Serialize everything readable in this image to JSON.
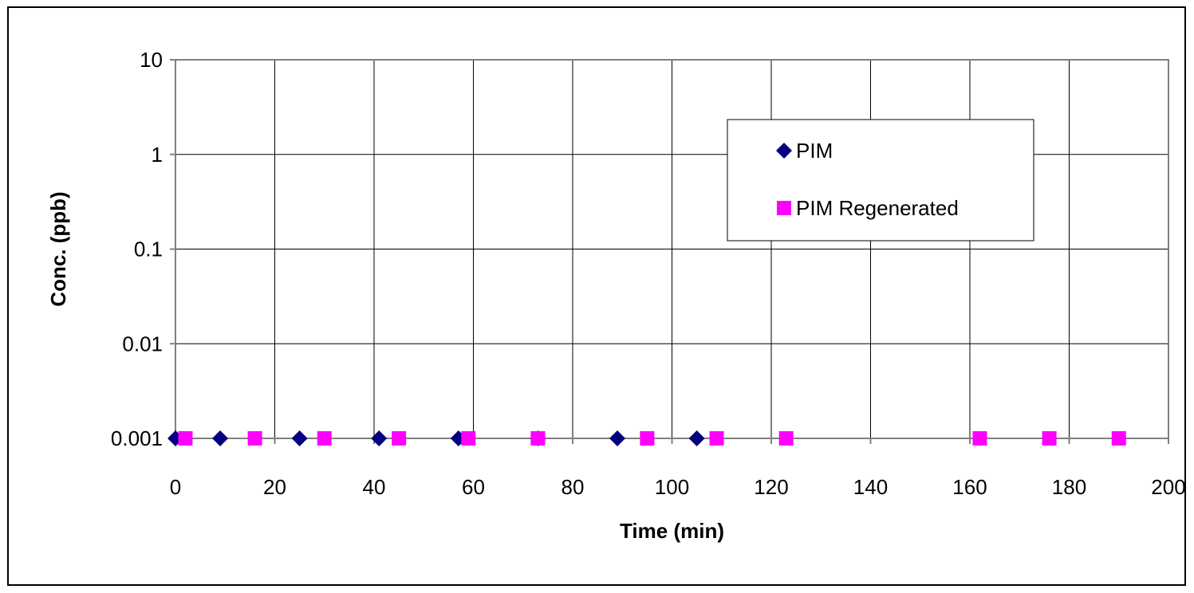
{
  "chart_data": {
    "type": "scatter",
    "title": "",
    "xlabel": "Time (min)",
    "ylabel": "Conc. (ppb)",
    "xlim": [
      0,
      200
    ],
    "ylim": [
      0.001,
      10
    ],
    "yscale": "log",
    "grid": true,
    "legend": "top-right",
    "x_ticks": [
      "0",
      "20",
      "40",
      "60",
      "80",
      "100",
      "120",
      "140",
      "160",
      "180",
      "200"
    ],
    "y_ticks": [
      "10",
      "1",
      "0.1",
      "0.01",
      "0.001"
    ],
    "series": [
      {
        "name": "PIM",
        "color": "#000080",
        "marker": "diamond",
        "x": [
          0,
          9,
          25,
          41,
          57,
          73,
          89,
          105
        ],
        "y": [
          0.001,
          0.001,
          0.001,
          0.001,
          0.001,
          0.001,
          0.001,
          0.001
        ]
      },
      {
        "name": "PIM Regenerated",
        "color": "#FF00FF",
        "marker": "square",
        "x": [
          2,
          16,
          30,
          45,
          59,
          73,
          95,
          109,
          123,
          162,
          176,
          190
        ],
        "y": [
          0.001,
          0.001,
          0.001,
          0.001,
          0.001,
          0.001,
          0.001,
          0.001,
          0.001,
          0.001,
          0.001,
          0.001
        ]
      }
    ]
  }
}
